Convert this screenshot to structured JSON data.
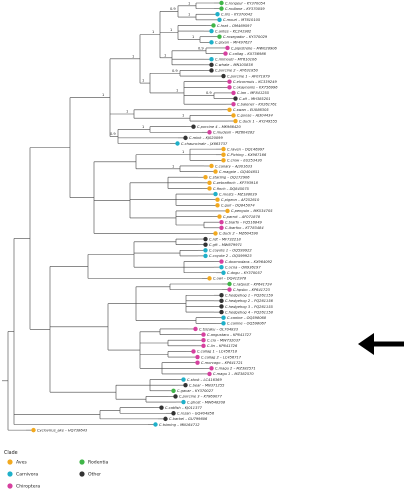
{
  "legend": {
    "title": "Clade",
    "items": [
      {
        "label": "Aves",
        "color": "#f2a91f"
      },
      {
        "label": "Carnivora",
        "color": "#1fb0c9"
      },
      {
        "label": "Chiroptera",
        "color": "#d6409f"
      },
      {
        "label": "Rodentia",
        "color": "#3fb548"
      },
      {
        "label": "Other",
        "color": "#333333"
      }
    ]
  },
  "bootstrap_labels": [
    "1",
    "1",
    "0.9",
    "1",
    "1",
    "0.9",
    "1",
    "1",
    "0.9",
    "0.9",
    "1",
    "1",
    "1",
    "1",
    "1",
    "1",
    "0.9",
    "1",
    "1",
    "1"
  ],
  "tree": {
    "leaves": [
      {
        "name": "C.rongeur – KY370054",
        "clade": "Rodentia"
      },
      {
        "name": "C.rodlane – KY370059",
        "clade": "Rodentia"
      },
      {
        "name": "C.lirs – KY370042",
        "clade": "Carnivora"
      },
      {
        "name": "C.mouri – MT610105",
        "clade": "Carnivora"
      },
      {
        "name": "C.hrat – OM469597",
        "clade": "Rodentia"
      },
      {
        "name": "C.antes – KC241982",
        "clade": "Carnivora"
      },
      {
        "name": "C.rosegador – KY370029",
        "clade": "Rodentia"
      },
      {
        "name": "C.gryan – MF497627",
        "clade": "Carnivora"
      },
      {
        "name": "C.pipistrelle – MW028906",
        "clade": "Chiroptera"
      },
      {
        "name": "C.callag – KX756986",
        "clade": "Chiroptera"
      },
      {
        "name": "C.mimouti – MT610106",
        "clade": "Carnivora"
      },
      {
        "name": "C.whale – MN105838",
        "clade": "Other"
      },
      {
        "name": "C.porcine 2 – AY631850",
        "clade": "Other"
      },
      {
        "name": "C.porcine 1 – AF071879",
        "clade": "Other"
      },
      {
        "name": "C.elcormuis – KC339249",
        "clade": "Chiroptera"
      },
      {
        "name": "C.okaynanis – KX756996",
        "clade": "Chiroptera"
      },
      {
        "name": "C.lan – MF841255",
        "clade": "Chiroptera"
      },
      {
        "name": "C.zlt – MH385201",
        "clade": "Other"
      },
      {
        "name": "C.balener – KX261761",
        "clade": "Chiroptera"
      },
      {
        "name": "C.swan – EU086305",
        "clade": "Aves"
      },
      {
        "name": "C.goose – AJ304434",
        "clade": "Aves"
      },
      {
        "name": "C.duck 1 – AY249555",
        "clade": "Aves"
      },
      {
        "name": "C.porcine 4 – MK966420",
        "clade": "Other"
      },
      {
        "name": "C.mudeoli – MZ604282",
        "clade": "Chiroptera"
      },
      {
        "name": "C.mink – KJ020099",
        "clade": "Other"
      },
      {
        "name": "C.chauncinatr – JX663737",
        "clade": "Carnivora"
      },
      {
        "name": "C.raven – DQ146997",
        "clade": "Aves"
      },
      {
        "name": "C.Piching – KX987166",
        "clade": "Aves"
      },
      {
        "name": "C.crow – EU253430",
        "clade": "Aves"
      },
      {
        "name": "C.canary – AJ301633",
        "clade": "Aves"
      },
      {
        "name": "C.magpie – GQ404851",
        "clade": "Aves"
      },
      {
        "name": "C.starling – DQ172906",
        "clade": "Aves"
      },
      {
        "name": "C.zebrafinch – KP793918",
        "clade": "Aves"
      },
      {
        "name": "C.finch – DQ845075",
        "clade": "Aves"
      },
      {
        "name": "C.mosts – MZ188039",
        "clade": "Carnivora"
      },
      {
        "name": "C.pigeon – AF252610",
        "clade": "Aves"
      },
      {
        "name": "C.gull – DQ845074",
        "clade": "Aves"
      },
      {
        "name": "C.penguin – MK534705",
        "clade": "Aves"
      },
      {
        "name": "C.parrot – AF071878",
        "clade": "Aves"
      },
      {
        "name": "C.biarfo – FQ516849",
        "clade": "Chiroptera"
      },
      {
        "name": "C.ibarfoo – KT783484",
        "clade": "Chiroptera"
      },
      {
        "name": "C.duck 2 – MZ604590",
        "clade": "Aves"
      },
      {
        "name": "C.rdt – MF732218",
        "clade": "Other"
      },
      {
        "name": "C.gft – MW679971",
        "clade": "Other"
      },
      {
        "name": "C.coyote 1 – OQ599922",
        "clade": "Carnivora"
      },
      {
        "name": "C.coyote 2 – OQ599923",
        "clade": "Carnivora"
      },
      {
        "name": "C.doxmodaos – KX964092",
        "clade": "Chiroptera"
      },
      {
        "name": "C.ocna – ON936197",
        "clade": "Carnivora"
      },
      {
        "name": "C.dogu – KY370057",
        "clade": "Carnivora"
      },
      {
        "name": "C.owl – DQ412978",
        "clade": "Aves"
      },
      {
        "name": "C.ratpost – KP641724",
        "clade": "Rodentia"
      },
      {
        "name": "C.hpsbo – KP641723",
        "clade": "Chiroptera"
      },
      {
        "name": "C.hedgehog 1 – PQ261159",
        "clade": "Other"
      },
      {
        "name": "C.hedgehog 2 – PQ261156",
        "clade": "Other"
      },
      {
        "name": "C.hedgehog 3 – PQ261155",
        "clade": "Other"
      },
      {
        "name": "C.hedgehog 4 – PQ261158",
        "clade": "Other"
      },
      {
        "name": "C.canine – OQ598068",
        "clade": "Carnivora"
      },
      {
        "name": "C.canine – OQ598067",
        "clade": "Carnivora"
      },
      {
        "name": "C.tsizaku – OL704833",
        "clade": "Chiroptera"
      },
      {
        "name": "C.angustaru – KP641727",
        "clade": "Chiroptera"
      },
      {
        "name": "C.cia – MW732037",
        "clade": "Chiroptera"
      },
      {
        "name": "C.lin – KP641726",
        "clade": "Chiroptera"
      },
      {
        "name": "C.callag 1 – LC456718",
        "clade": "Chiroptera"
      },
      {
        "name": "C.callag 2 – LC456717",
        "clade": "Chiroptera"
      },
      {
        "name": "C.morcago – KP641721",
        "clade": "Chiroptera"
      },
      {
        "name": "C.magu 2 – MZ382571",
        "clade": "Chiroptera"
      },
      {
        "name": "C.magu 1 – MZ382570",
        "clade": "Chiroptera"
      },
      {
        "name": "C.stost – LC416369",
        "clade": "Carnivora"
      },
      {
        "name": "C.bear – MN371255",
        "clade": "Other"
      },
      {
        "name": "C.gavar – KY370027",
        "clade": "Rodentia"
      },
      {
        "name": "C.porcine 3 – KT869077",
        "clade": "Other"
      },
      {
        "name": "C.ghost – MW648208",
        "clade": "Carnivora"
      },
      {
        "name": "C.catfish – KJ011377",
        "clade": "Other"
      },
      {
        "name": "C.rozan – GQ404856",
        "clade": "Other"
      },
      {
        "name": "C.barbel – GU799606",
        "clade": "Other"
      },
      {
        "name": "C.tsiming – MN164712",
        "clade": "Carnivora"
      },
      {
        "name": "Cyclovirus_ake – HQ738643",
        "clade": "Aves"
      }
    ]
  }
}
